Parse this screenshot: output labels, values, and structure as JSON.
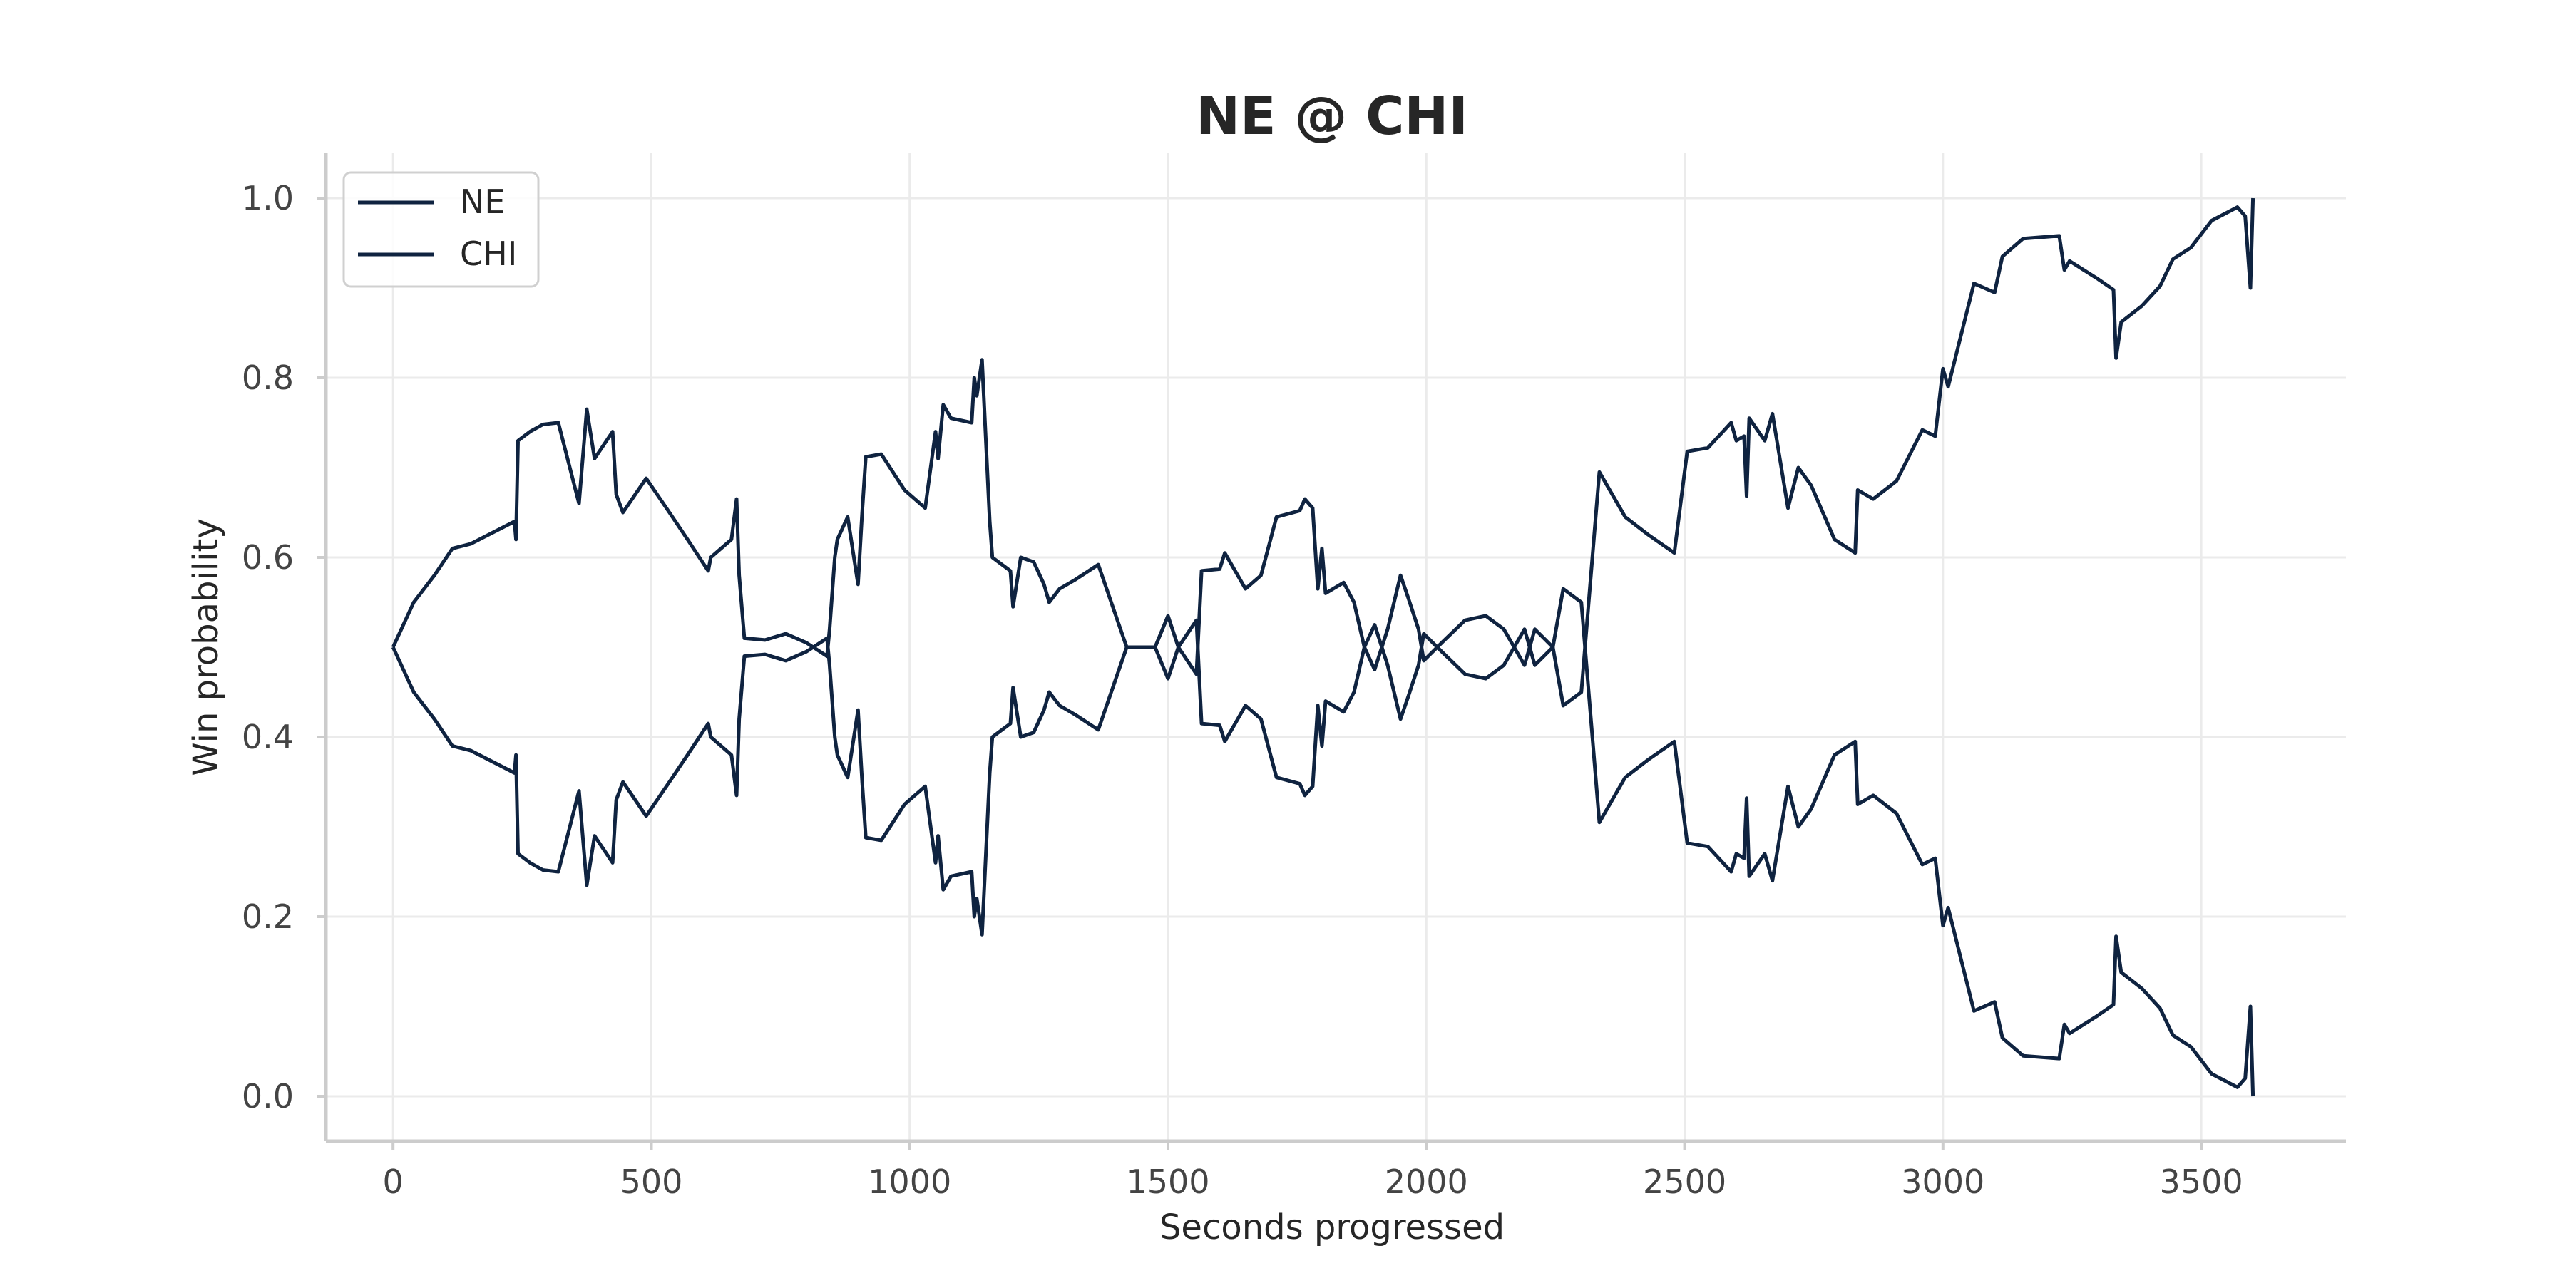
{
  "chart_data": {
    "type": "line",
    "title": "NE @ CHI",
    "xlabel": "Seconds progressed",
    "ylabel": "Win probability",
    "xlim": [
      -130,
      3780
    ],
    "ylim": [
      -0.05,
      1.05
    ],
    "x_ticks": [
      0,
      500,
      1000,
      1500,
      2000,
      2500,
      3000,
      3500
    ],
    "y_ticks": [
      0.0,
      0.2,
      0.4,
      0.6,
      0.8,
      1.0
    ],
    "y_tick_labels": [
      "0.0",
      "0.2",
      "0.4",
      "0.6",
      "0.8",
      "1.0"
    ],
    "grid": true,
    "legend_position": "top-left",
    "line_color": "#0f2340",
    "series": [
      {
        "name": "NE",
        "points": [
          [
            0,
            0.5
          ],
          [
            40,
            0.55
          ],
          [
            80,
            0.58
          ],
          [
            115,
            0.61
          ],
          [
            150,
            0.615
          ],
          [
            235,
            0.64
          ],
          [
            238,
            0.62
          ],
          [
            242,
            0.73
          ],
          [
            265,
            0.74
          ],
          [
            290,
            0.748
          ],
          [
            320,
            0.75
          ],
          [
            360,
            0.66
          ],
          [
            375,
            0.765
          ],
          [
            390,
            0.71
          ],
          [
            425,
            0.74
          ],
          [
            432,
            0.67
          ],
          [
            445,
            0.65
          ],
          [
            490,
            0.688
          ],
          [
            535,
            0.65
          ],
          [
            570,
            0.62
          ],
          [
            610,
            0.585
          ],
          [
            615,
            0.6
          ],
          [
            655,
            0.62
          ],
          [
            665,
            0.665
          ],
          [
            670,
            0.58
          ],
          [
            680,
            0.51
          ],
          [
            720,
            0.508
          ],
          [
            760,
            0.515
          ],
          [
            800,
            0.505
          ],
          [
            840,
            0.49
          ],
          [
            845,
            0.52
          ],
          [
            855,
            0.6
          ],
          [
            860,
            0.62
          ],
          [
            880,
            0.645
          ],
          [
            900,
            0.57
          ],
          [
            908,
            0.65
          ],
          [
            915,
            0.712
          ],
          [
            945,
            0.715
          ],
          [
            990,
            0.675
          ],
          [
            1030,
            0.655
          ],
          [
            1050,
            0.74
          ],
          [
            1055,
            0.71
          ],
          [
            1065,
            0.77
          ],
          [
            1080,
            0.755
          ],
          [
            1120,
            0.75
          ],
          [
            1125,
            0.8
          ],
          [
            1130,
            0.78
          ],
          [
            1140,
            0.82
          ],
          [
            1155,
            0.64
          ],
          [
            1160,
            0.6
          ],
          [
            1195,
            0.585
          ],
          [
            1200,
            0.545
          ],
          [
            1215,
            0.6
          ],
          [
            1240,
            0.595
          ],
          [
            1260,
            0.57
          ],
          [
            1270,
            0.55
          ],
          [
            1290,
            0.565
          ],
          [
            1320,
            0.575
          ],
          [
            1365,
            0.592
          ],
          [
            1420,
            0.5
          ],
          [
            1455,
            0.5
          ],
          [
            1475,
            0.5
          ],
          [
            1500,
            0.535
          ],
          [
            1520,
            0.5
          ],
          [
            1555,
            0.47
          ],
          [
            1565,
            0.585
          ],
          [
            1600,
            0.587
          ],
          [
            1610,
            0.605
          ],
          [
            1625,
            0.59
          ],
          [
            1650,
            0.565
          ],
          [
            1680,
            0.58
          ],
          [
            1710,
            0.645
          ],
          [
            1755,
            0.652
          ],
          [
            1765,
            0.665
          ],
          [
            1780,
            0.655
          ],
          [
            1790,
            0.565
          ],
          [
            1798,
            0.61
          ],
          [
            1805,
            0.56
          ],
          [
            1840,
            0.572
          ],
          [
            1860,
            0.55
          ],
          [
            1880,
            0.5
          ],
          [
            1900,
            0.475
          ],
          [
            1925,
            0.52
          ],
          [
            1950,
            0.58
          ],
          [
            1965,
            0.555
          ],
          [
            1985,
            0.52
          ],
          [
            1995,
            0.485
          ],
          [
            2030,
            0.505
          ],
          [
            2075,
            0.53
          ],
          [
            2115,
            0.535
          ],
          [
            2150,
            0.52
          ],
          [
            2190,
            0.48
          ],
          [
            2210,
            0.52
          ],
          [
            2245,
            0.5
          ],
          [
            2265,
            0.435
          ],
          [
            2300,
            0.45
          ],
          [
            2335,
            0.695
          ],
          [
            2385,
            0.645
          ],
          [
            2430,
            0.625
          ],
          [
            2480,
            0.605
          ],
          [
            2505,
            0.718
          ],
          [
            2545,
            0.722
          ],
          [
            2590,
            0.75
          ],
          [
            2600,
            0.73
          ],
          [
            2615,
            0.735
          ],
          [
            2620,
            0.668
          ],
          [
            2625,
            0.755
          ],
          [
            2655,
            0.73
          ],
          [
            2670,
            0.76
          ],
          [
            2700,
            0.655
          ],
          [
            2720,
            0.7
          ],
          [
            2745,
            0.68
          ],
          [
            2790,
            0.62
          ],
          [
            2830,
            0.605
          ],
          [
            2835,
            0.675
          ],
          [
            2865,
            0.665
          ],
          [
            2910,
            0.685
          ],
          [
            2960,
            0.742
          ],
          [
            2985,
            0.735
          ],
          [
            3000,
            0.81
          ],
          [
            3010,
            0.79
          ],
          [
            3060,
            0.905
          ],
          [
            3100,
            0.895
          ],
          [
            3115,
            0.935
          ],
          [
            3155,
            0.955
          ],
          [
            3225,
            0.958
          ],
          [
            3235,
            0.92
          ],
          [
            3245,
            0.93
          ],
          [
            3300,
            0.91
          ],
          [
            3330,
            0.898
          ],
          [
            3335,
            0.822
          ],
          [
            3345,
            0.862
          ],
          [
            3385,
            0.88
          ],
          [
            3420,
            0.902
          ],
          [
            3445,
            0.932
          ],
          [
            3480,
            0.945
          ],
          [
            3520,
            0.975
          ],
          [
            3570,
            0.99
          ],
          [
            3585,
            0.98
          ],
          [
            3595,
            0.9
          ],
          [
            3600,
            1.0
          ]
        ]
      },
      {
        "name": "CHI",
        "points": [
          [
            0,
            0.5
          ],
          [
            40,
            0.45
          ],
          [
            80,
            0.42
          ],
          [
            115,
            0.39
          ],
          [
            150,
            0.385
          ],
          [
            235,
            0.36
          ],
          [
            238,
            0.38
          ],
          [
            242,
            0.27
          ],
          [
            265,
            0.26
          ],
          [
            290,
            0.252
          ],
          [
            320,
            0.25
          ],
          [
            360,
            0.34
          ],
          [
            375,
            0.235
          ],
          [
            390,
            0.29
          ],
          [
            425,
            0.26
          ],
          [
            432,
            0.33
          ],
          [
            445,
            0.35
          ],
          [
            490,
            0.312
          ],
          [
            535,
            0.35
          ],
          [
            570,
            0.38
          ],
          [
            610,
            0.415
          ],
          [
            615,
            0.4
          ],
          [
            655,
            0.38
          ],
          [
            665,
            0.335
          ],
          [
            670,
            0.42
          ],
          [
            680,
            0.49
          ],
          [
            720,
            0.492
          ],
          [
            760,
            0.485
          ],
          [
            800,
            0.495
          ],
          [
            840,
            0.51
          ],
          [
            845,
            0.48
          ],
          [
            855,
            0.4
          ],
          [
            860,
            0.38
          ],
          [
            880,
            0.355
          ],
          [
            900,
            0.43
          ],
          [
            908,
            0.35
          ],
          [
            915,
            0.288
          ],
          [
            945,
            0.285
          ],
          [
            990,
            0.325
          ],
          [
            1030,
            0.345
          ],
          [
            1050,
            0.26
          ],
          [
            1055,
            0.29
          ],
          [
            1065,
            0.23
          ],
          [
            1080,
            0.245
          ],
          [
            1120,
            0.25
          ],
          [
            1125,
            0.2
          ],
          [
            1130,
            0.22
          ],
          [
            1140,
            0.18
          ],
          [
            1155,
            0.36
          ],
          [
            1160,
            0.4
          ],
          [
            1195,
            0.415
          ],
          [
            1200,
            0.455
          ],
          [
            1215,
            0.4
          ],
          [
            1240,
            0.405
          ],
          [
            1260,
            0.43
          ],
          [
            1270,
            0.45
          ],
          [
            1290,
            0.435
          ],
          [
            1320,
            0.425
          ],
          [
            1365,
            0.408
          ],
          [
            1420,
            0.5
          ],
          [
            1455,
            0.5
          ],
          [
            1475,
            0.5
          ],
          [
            1500,
            0.465
          ],
          [
            1520,
            0.5
          ],
          [
            1555,
            0.53
          ],
          [
            1565,
            0.415
          ],
          [
            1600,
            0.413
          ],
          [
            1610,
            0.395
          ],
          [
            1625,
            0.41
          ],
          [
            1650,
            0.435
          ],
          [
            1680,
            0.42
          ],
          [
            1710,
            0.355
          ],
          [
            1755,
            0.348
          ],
          [
            1765,
            0.335
          ],
          [
            1780,
            0.345
          ],
          [
            1790,
            0.435
          ],
          [
            1798,
            0.39
          ],
          [
            1805,
            0.44
          ],
          [
            1840,
            0.428
          ],
          [
            1860,
            0.45
          ],
          [
            1880,
            0.5
          ],
          [
            1900,
            0.525
          ],
          [
            1925,
            0.48
          ],
          [
            1950,
            0.42
          ],
          [
            1965,
            0.445
          ],
          [
            1985,
            0.48
          ],
          [
            1995,
            0.515
          ],
          [
            2030,
            0.495
          ],
          [
            2075,
            0.47
          ],
          [
            2115,
            0.465
          ],
          [
            2150,
            0.48
          ],
          [
            2190,
            0.52
          ],
          [
            2210,
            0.48
          ],
          [
            2245,
            0.5
          ],
          [
            2265,
            0.565
          ],
          [
            2300,
            0.55
          ],
          [
            2335,
            0.305
          ],
          [
            2385,
            0.355
          ],
          [
            2430,
            0.375
          ],
          [
            2480,
            0.395
          ],
          [
            2505,
            0.282
          ],
          [
            2545,
            0.278
          ],
          [
            2590,
            0.25
          ],
          [
            2600,
            0.27
          ],
          [
            2615,
            0.265
          ],
          [
            2620,
            0.332
          ],
          [
            2625,
            0.245
          ],
          [
            2655,
            0.27
          ],
          [
            2670,
            0.24
          ],
          [
            2700,
            0.345
          ],
          [
            2720,
            0.3
          ],
          [
            2745,
            0.32
          ],
          [
            2790,
            0.38
          ],
          [
            2830,
            0.395
          ],
          [
            2835,
            0.325
          ],
          [
            2865,
            0.335
          ],
          [
            2910,
            0.315
          ],
          [
            2960,
            0.258
          ],
          [
            2985,
            0.265
          ],
          [
            3000,
            0.19
          ],
          [
            3010,
            0.21
          ],
          [
            3060,
            0.095
          ],
          [
            3100,
            0.105
          ],
          [
            3115,
            0.065
          ],
          [
            3155,
            0.045
          ],
          [
            3225,
            0.042
          ],
          [
            3235,
            0.08
          ],
          [
            3245,
            0.07
          ],
          [
            3300,
            0.09
          ],
          [
            3330,
            0.102
          ],
          [
            3335,
            0.178
          ],
          [
            3345,
            0.138
          ],
          [
            3385,
            0.12
          ],
          [
            3420,
            0.098
          ],
          [
            3445,
            0.068
          ],
          [
            3480,
            0.055
          ],
          [
            3520,
            0.025
          ],
          [
            3570,
            0.01
          ],
          [
            3585,
            0.02
          ],
          [
            3595,
            0.1
          ],
          [
            3600,
            0.0
          ]
        ]
      }
    ]
  }
}
